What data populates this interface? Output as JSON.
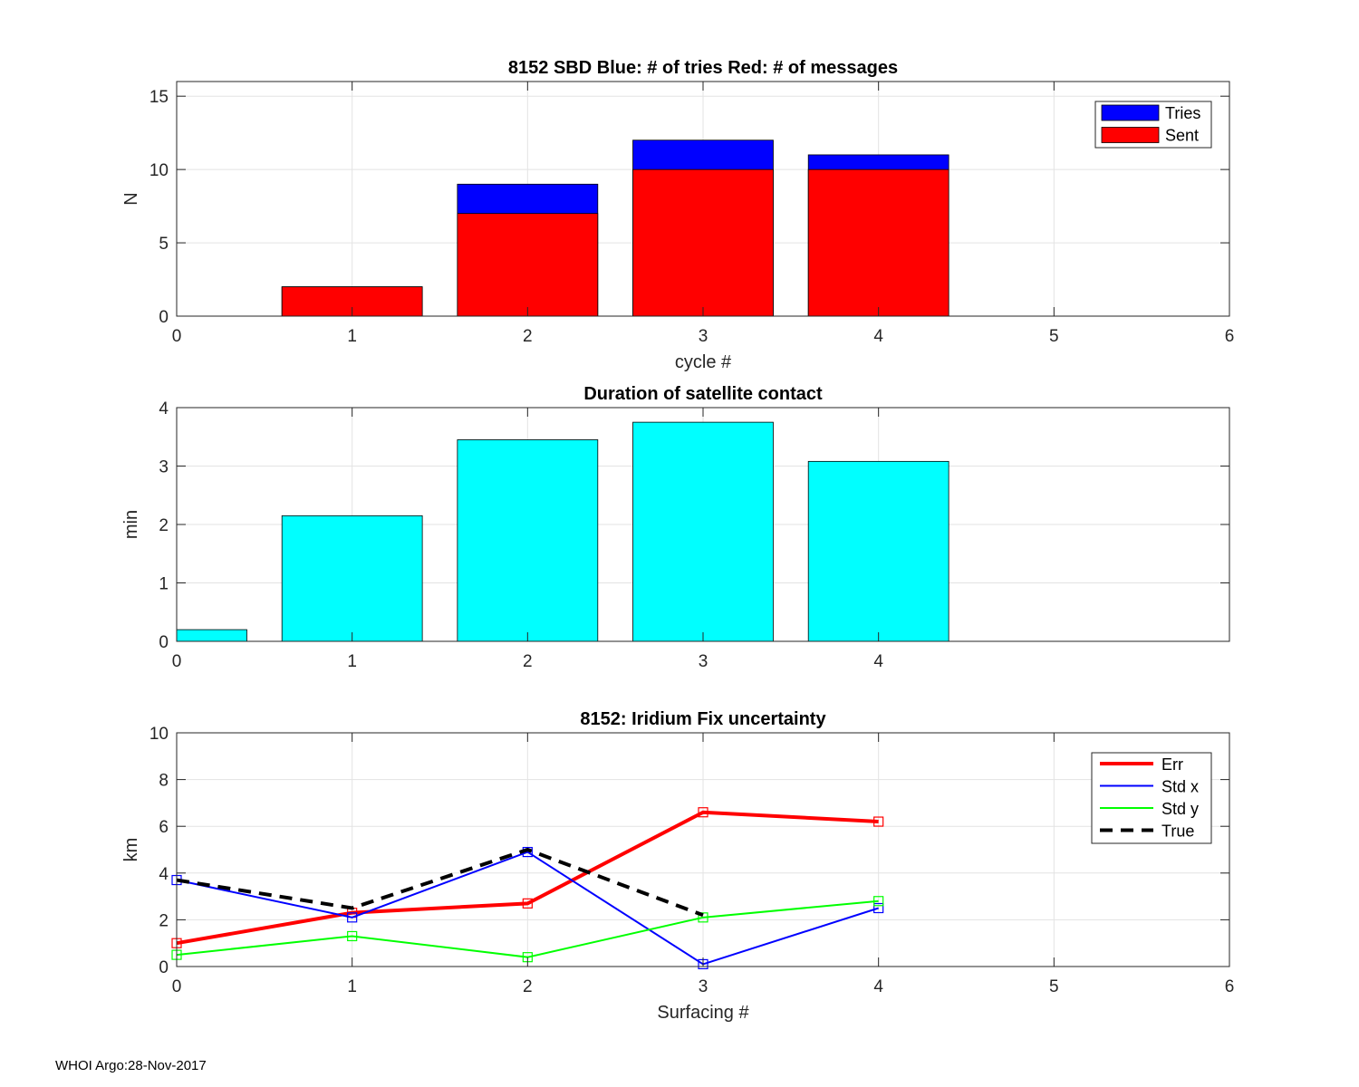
{
  "footer": "WHOI Argo:28-Nov-2017",
  "chart_data": [
    {
      "type": "bar",
      "title": "8152 SBD  Blue: # of tries   Red: # of messages",
      "xlabel": "cycle #",
      "ylabel": "N",
      "xlim": [
        0,
        6
      ],
      "ylim": [
        0,
        16
      ],
      "xticks": [
        0,
        1,
        2,
        3,
        4,
        5,
        6
      ],
      "yticks": [
        0,
        5,
        10,
        15
      ],
      "grid": true,
      "legend_position": "top-right",
      "categories": [
        1,
        2,
        3,
        4
      ],
      "series": [
        {
          "name": "Tries",
          "color": "#0000ff",
          "values": [
            2,
            9,
            12,
            11
          ]
        },
        {
          "name": "Sent",
          "color": "#ff0000",
          "values": [
            2,
            7,
            10,
            10
          ]
        }
      ]
    },
    {
      "type": "bar",
      "title": "Duration of satellite contact",
      "xlabel": "",
      "ylabel": "min",
      "xlim": [
        0,
        6
      ],
      "ylim": [
        0,
        4
      ],
      "xticks": [
        0,
        1,
        2,
        3,
        4
      ],
      "yticks": [
        0,
        1,
        2,
        3,
        4
      ],
      "grid": true,
      "categories": [
        0,
        1,
        2,
        3,
        4
      ],
      "series": [
        {
          "name": "Duration",
          "color": "#00ffff",
          "values": [
            0.2,
            2.15,
            3.45,
            3.75,
            3.08
          ]
        }
      ]
    },
    {
      "type": "line",
      "title": "8152: Iridium Fix uncertainty",
      "xlabel": "Surfacing #",
      "ylabel": "km",
      "xlim": [
        0,
        6
      ],
      "ylim": [
        0,
        10
      ],
      "xticks": [
        0,
        1,
        2,
        3,
        4,
        5,
        6
      ],
      "yticks": [
        0,
        2,
        4,
        6,
        8,
        10
      ],
      "grid": true,
      "legend_position": "top-right",
      "series": [
        {
          "name": "Err",
          "color": "#ff0000",
          "style": "solid-thick",
          "markers": true,
          "x": [
            0,
            1,
            2,
            3,
            4
          ],
          "y": [
            1.0,
            2.3,
            2.7,
            6.6,
            6.2
          ]
        },
        {
          "name": "Std x",
          "color": "#0000ff",
          "style": "solid",
          "markers": true,
          "x": [
            0,
            1,
            2,
            3,
            4
          ],
          "y": [
            3.7,
            2.1,
            4.9,
            0.1,
            2.5
          ]
        },
        {
          "name": "Std y",
          "color": "#00ff00",
          "style": "solid",
          "markers": true,
          "x": [
            0,
            1,
            2,
            3,
            4
          ],
          "y": [
            0.5,
            1.3,
            0.4,
            2.1,
            2.8
          ]
        },
        {
          "name": "True",
          "color": "#000000",
          "style": "dashed",
          "markers": false,
          "x": [
            0,
            1,
            2,
            3
          ],
          "y": [
            3.7,
            2.5,
            5.0,
            2.2
          ]
        }
      ]
    }
  ]
}
